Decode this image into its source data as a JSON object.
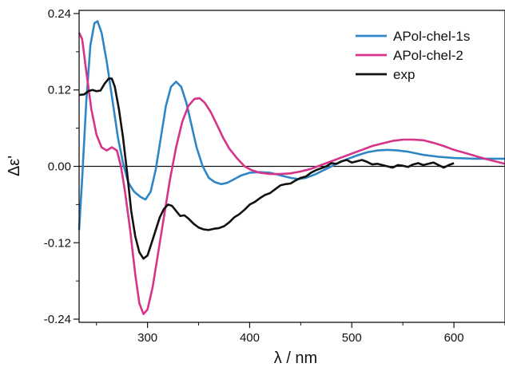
{
  "chart_data": {
    "type": "line",
    "title": "",
    "xlabel": "λ / nm",
    "ylabel": "Δε'",
    "xlim": [
      233,
      650
    ],
    "ylim": [
      -0.245,
      0.245
    ],
    "x_ticks": [
      300,
      400,
      500,
      600
    ],
    "x_tick_labels": [
      "300",
      "400",
      "500",
      "600"
    ],
    "y_ticks": [
      0.24,
      0.12,
      0.0,
      -0.12,
      -0.24
    ],
    "y_tick_labels": [
      "0.24",
      "0.12",
      "0.00",
      "-0.12",
      "-0.24"
    ],
    "zero_line": true,
    "grid": false,
    "legend_position": "top-right",
    "series": [
      {
        "name": "APol-chel-1s",
        "color": "#2f86c6",
        "points": [
          [
            233,
            -0.1
          ],
          [
            236,
            -0.02
          ],
          [
            240,
            0.1
          ],
          [
            244,
            0.19
          ],
          [
            248,
            0.225
          ],
          [
            251,
            0.228
          ],
          [
            255,
            0.21
          ],
          [
            260,
            0.165
          ],
          [
            266,
            0.1
          ],
          [
            271,
            0.045
          ],
          [
            276,
            0.005
          ],
          [
            281,
            -0.025
          ],
          [
            287,
            -0.04
          ],
          [
            293,
            -0.048
          ],
          [
            298,
            -0.052
          ],
          [
            303,
            -0.04
          ],
          [
            308,
            -0.005
          ],
          [
            313,
            0.045
          ],
          [
            318,
            0.095
          ],
          [
            323,
            0.125
          ],
          [
            328,
            0.133
          ],
          [
            333,
            0.125
          ],
          [
            338,
            0.1
          ],
          [
            343,
            0.065
          ],
          [
            348,
            0.03
          ],
          [
            354,
            0.0
          ],
          [
            360,
            -0.018
          ],
          [
            366,
            -0.025
          ],
          [
            372,
            -0.028
          ],
          [
            378,
            -0.026
          ],
          [
            385,
            -0.02
          ],
          [
            392,
            -0.014
          ],
          [
            400,
            -0.01
          ],
          [
            410,
            -0.009
          ],
          [
            420,
            -0.01
          ],
          [
            430,
            -0.014
          ],
          [
            440,
            -0.018
          ],
          [
            448,
            -0.02
          ],
          [
            455,
            -0.018
          ],
          [
            465,
            -0.012
          ],
          [
            475,
            -0.004
          ],
          [
            485,
            0.004
          ],
          [
            495,
            0.011
          ],
          [
            505,
            0.017
          ],
          [
            515,
            0.022
          ],
          [
            525,
            0.025
          ],
          [
            535,
            0.026
          ],
          [
            545,
            0.025
          ],
          [
            555,
            0.023
          ],
          [
            570,
            0.018
          ],
          [
            585,
            0.015
          ],
          [
            600,
            0.013
          ],
          [
            620,
            0.012
          ],
          [
            650,
            0.012
          ]
        ]
      },
      {
        "name": "APol-chel-2",
        "color": "#d6338a",
        "points": [
          [
            233,
            0.21
          ],
          [
            236,
            0.2
          ],
          [
            240,
            0.15
          ],
          [
            245,
            0.09
          ],
          [
            250,
            0.05
          ],
          [
            255,
            0.03
          ],
          [
            260,
            0.025
          ],
          [
            265,
            0.03
          ],
          [
            270,
            0.025
          ],
          [
            274,
            0.0
          ],
          [
            278,
            -0.04
          ],
          [
            283,
            -0.1
          ],
          [
            288,
            -0.17
          ],
          [
            292,
            -0.215
          ],
          [
            296,
            -0.232
          ],
          [
            300,
            -0.225
          ],
          [
            305,
            -0.19
          ],
          [
            310,
            -0.14
          ],
          [
            316,
            -0.08
          ],
          [
            322,
            -0.02
          ],
          [
            328,
            0.03
          ],
          [
            334,
            0.07
          ],
          [
            340,
            0.095
          ],
          [
            346,
            0.106
          ],
          [
            351,
            0.107
          ],
          [
            356,
            0.1
          ],
          [
            362,
            0.085
          ],
          [
            368,
            0.065
          ],
          [
            374,
            0.045
          ],
          [
            380,
            0.028
          ],
          [
            388,
            0.012
          ],
          [
            395,
            0.0
          ],
          [
            402,
            -0.006
          ],
          [
            410,
            -0.01
          ],
          [
            420,
            -0.012
          ],
          [
            430,
            -0.012
          ],
          [
            440,
            -0.011
          ],
          [
            450,
            -0.008
          ],
          [
            460,
            -0.004
          ],
          [
            470,
            0.002
          ],
          [
            480,
            0.008
          ],
          [
            490,
            0.014
          ],
          [
            500,
            0.02
          ],
          [
            510,
            0.026
          ],
          [
            520,
            0.032
          ],
          [
            530,
            0.036
          ],
          [
            540,
            0.04
          ],
          [
            550,
            0.042
          ],
          [
            560,
            0.042
          ],
          [
            570,
            0.041
          ],
          [
            580,
            0.037
          ],
          [
            590,
            0.032
          ],
          [
            600,
            0.026
          ],
          [
            615,
            0.019
          ],
          [
            630,
            0.012
          ],
          [
            650,
            0.004
          ]
        ]
      },
      {
        "name": "exp",
        "color": "#111111",
        "points": [
          [
            233,
            0.112
          ],
          [
            238,
            0.113
          ],
          [
            242,
            0.118
          ],
          [
            246,
            0.12
          ],
          [
            250,
            0.118
          ],
          [
            254,
            0.119
          ],
          [
            258,
            0.13
          ],
          [
            262,
            0.138
          ],
          [
            265,
            0.138
          ],
          [
            268,
            0.125
          ],
          [
            272,
            0.09
          ],
          [
            276,
            0.045
          ],
          [
            280,
            -0.01
          ],
          [
            284,
            -0.07
          ],
          [
            288,
            -0.11
          ],
          [
            292,
            -0.135
          ],
          [
            296,
            -0.145
          ],
          [
            300,
            -0.14
          ],
          [
            304,
            -0.12
          ],
          [
            308,
            -0.1
          ],
          [
            312,
            -0.08
          ],
          [
            316,
            -0.067
          ],
          [
            320,
            -0.06
          ],
          [
            324,
            -0.062
          ],
          [
            328,
            -0.07
          ],
          [
            332,
            -0.078
          ],
          [
            336,
            -0.077
          ],
          [
            340,
            -0.082
          ],
          [
            345,
            -0.09
          ],
          [
            350,
            -0.096
          ],
          [
            355,
            -0.099
          ],
          [
            360,
            -0.1
          ],
          [
            365,
            -0.098
          ],
          [
            370,
            -0.097
          ],
          [
            375,
            -0.094
          ],
          [
            380,
            -0.088
          ],
          [
            385,
            -0.08
          ],
          [
            390,
            -0.075
          ],
          [
            395,
            -0.068
          ],
          [
            400,
            -0.06
          ],
          [
            405,
            -0.056
          ],
          [
            410,
            -0.05
          ],
          [
            415,
            -0.045
          ],
          [
            420,
            -0.042
          ],
          [
            425,
            -0.036
          ],
          [
            430,
            -0.03
          ],
          [
            435,
            -0.028
          ],
          [
            440,
            -0.027
          ],
          [
            445,
            -0.022
          ],
          [
            450,
            -0.018
          ],
          [
            455,
            -0.016
          ],
          [
            460,
            -0.01
          ],
          [
            465,
            -0.006
          ],
          [
            470,
            -0.003
          ],
          [
            475,
            0.0
          ],
          [
            480,
            0.005
          ],
          [
            485,
            0.004
          ],
          [
            490,
            0.008
          ],
          [
            495,
            0.01
          ],
          [
            500,
            0.006
          ],
          [
            505,
            0.008
          ],
          [
            510,
            0.01
          ],
          [
            515,
            0.007
          ],
          [
            520,
            0.003
          ],
          [
            525,
            0.004
          ],
          [
            530,
            0.002
          ],
          [
            535,
            0.0
          ],
          [
            540,
            -0.002
          ],
          [
            545,
            0.002
          ],
          [
            550,
            0.001
          ],
          [
            555,
            -0.001
          ],
          [
            560,
            0.003
          ],
          [
            565,
            0.005
          ],
          [
            570,
            0.002
          ],
          [
            575,
            0.004
          ],
          [
            580,
            0.006
          ],
          [
            585,
            0.002
          ],
          [
            590,
            -0.002
          ],
          [
            595,
            0.002
          ],
          [
            600,
            0.005
          ]
        ]
      }
    ]
  }
}
